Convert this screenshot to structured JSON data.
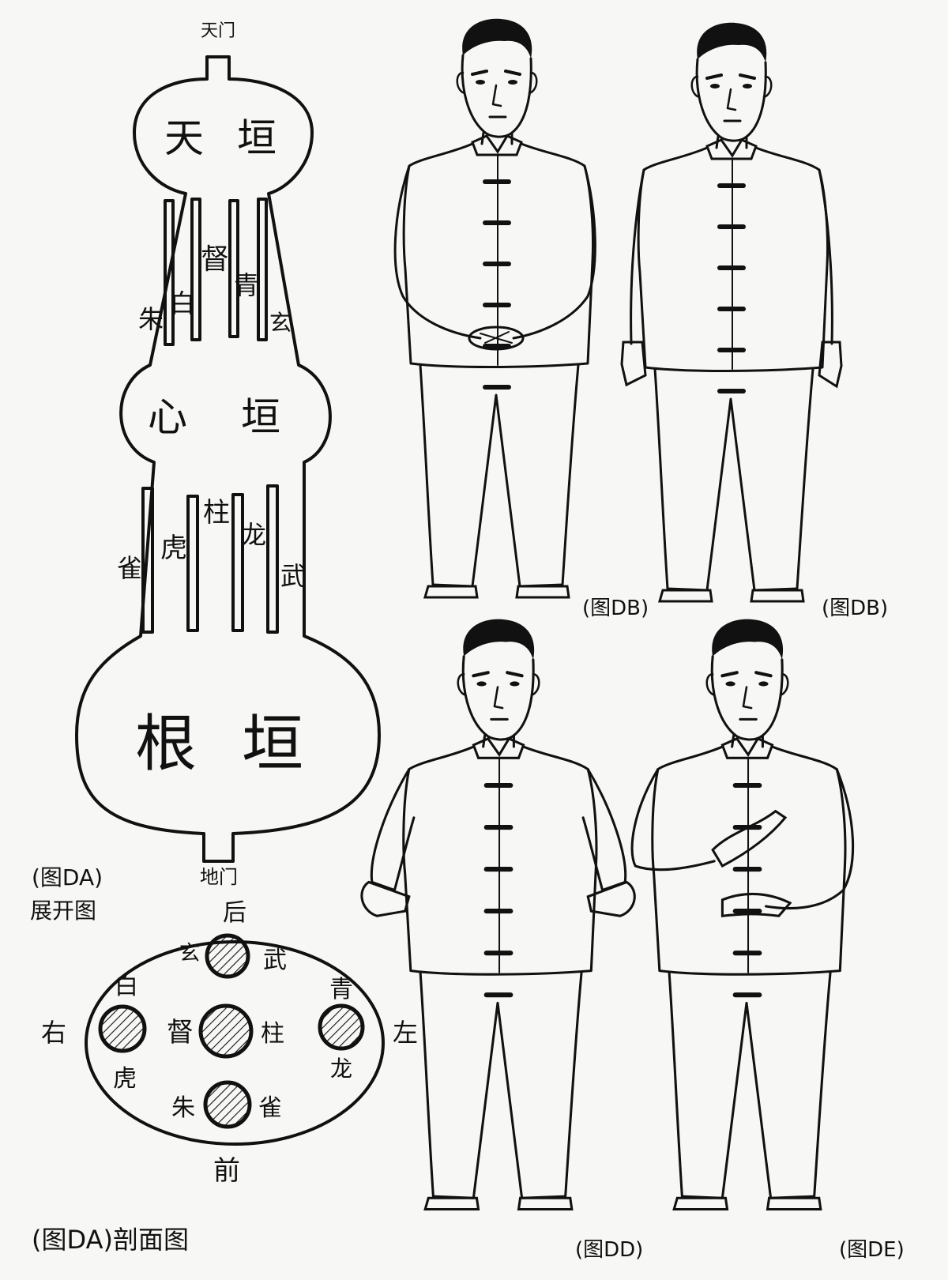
{
  "left_diagram": {
    "top_gate": "天门",
    "bottom_gate": "地门",
    "upper_bulb": [
      "天",
      "垣"
    ],
    "middle_bulb": [
      "心",
      "垣"
    ],
    "lower_bulb": [
      "根",
      "垣"
    ],
    "upper_channels": {
      "outer_left": "朱",
      "inner_left": "白",
      "center": "督",
      "inner_right": "青",
      "outer_right": "玄"
    },
    "lower_channels": {
      "outer_left": "雀",
      "inner_left": "虎",
      "center": "柱",
      "inner_right": "龙",
      "outer_right": "武"
    },
    "expanded_caption_line1": "(图DA)",
    "expanded_caption_line2": "展开图"
  },
  "cross_section": {
    "back": "后",
    "front": "前",
    "right": "右",
    "left": "左",
    "top_pair": [
      "玄",
      "武"
    ],
    "left_pair": [
      "白",
      "虎"
    ],
    "center_pair": [
      "督",
      "柱"
    ],
    "right_pair": [
      "青",
      "龙"
    ],
    "bottom_pair": [
      "朱",
      "雀"
    ],
    "caption": "(图DA)剖面图"
  },
  "figures": [
    {
      "caption": "(图DB)",
      "pose": "hands-clasped"
    },
    {
      "caption": "(图DB)",
      "pose": "arms-at-sides"
    },
    {
      "caption": "(图DD)",
      "pose": "palms-outward"
    },
    {
      "caption": "(图DE)",
      "pose": "hands-on-chest-and-belly"
    }
  ],
  "colors": {
    "ink": "#111111",
    "paper": "#f7f7f5"
  }
}
